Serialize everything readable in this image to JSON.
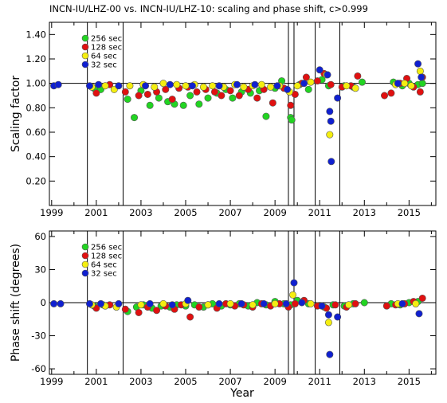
{
  "chart_data": [
    {
      "type": "scatter",
      "title": "INCN-IU/LHZ-00 vs. INCN-IU/LHZ-10: scaling and phase shift, c>0.999",
      "ylabel": "Scaling factor",
      "xlabel": "",
      "xlim": [
        1998.9,
        2016.2
      ],
      "ylim": [
        0.0,
        1.5
      ],
      "xticks": [
        "1999",
        "2001",
        "2003",
        "2005",
        "2007",
        "2009",
        "2011",
        "2013",
        "2015"
      ],
      "yticks": [
        "0.20",
        "0.40",
        "0.60",
        "0.80",
        "1.00",
        "1.20",
        "1.40"
      ],
      "reference_line": 1.0,
      "event_lines": [
        2000.6,
        2002.2,
        2009.6,
        2009.85,
        2010.8,
        2011.9
      ],
      "legend_position": "top-left",
      "series": [
        {
          "name": "256 sec",
          "color": "#22d422",
          "points": [
            [
              2000.9,
              0.96
            ],
            [
              2001.2,
              0.95
            ],
            [
              2002.4,
              0.87
            ],
            [
              2002.7,
              0.72
            ],
            [
              2003.0,
              0.94
            ],
            [
              2003.4,
              0.82
            ],
            [
              2003.8,
              0.88
            ],
            [
              2004.2,
              0.85
            ],
            [
              2004.5,
              0.83
            ],
            [
              2004.9,
              0.82
            ],
            [
              2005.2,
              0.9
            ],
            [
              2005.6,
              0.83
            ],
            [
              2006.0,
              0.88
            ],
            [
              2006.4,
              0.92
            ],
            [
              2006.8,
              0.95
            ],
            [
              2007.1,
              0.88
            ],
            [
              2007.5,
              0.93
            ],
            [
              2007.9,
              0.92
            ],
            [
              2008.3,
              0.94
            ],
            [
              2008.6,
              0.73
            ],
            [
              2009.0,
              0.96
            ],
            [
              2009.3,
              1.02
            ],
            [
              2009.7,
              0.72
            ],
            [
              2009.75,
              0.7
            ],
            [
              2010.1,
              0.99
            ],
            [
              2010.5,
              0.95
            ],
            [
              2011.1,
              1.03
            ],
            [
              2011.4,
              0.98
            ],
            [
              2012.1,
              0.98
            ],
            [
              2012.5,
              0.97
            ],
            [
              2012.9,
              1.01
            ],
            [
              2014.3,
              1.01
            ],
            [
              2014.7,
              0.98
            ],
            [
              2015.0,
              1.0
            ],
            [
              2015.4,
              0.99
            ],
            [
              2015.6,
              1.0
            ]
          ]
        },
        {
          "name": "128 sec",
          "color": "#e01010",
          "points": [
            [
              2001.0,
              0.92
            ],
            [
              2001.6,
              0.99
            ],
            [
              2002.3,
              0.93
            ],
            [
              2002.9,
              0.9
            ],
            [
              2003.3,
              0.91
            ],
            [
              2003.7,
              0.93
            ],
            [
              2004.1,
              0.95
            ],
            [
              2004.4,
              0.87
            ],
            [
              2004.7,
              0.96
            ],
            [
              2005.1,
              0.97
            ],
            [
              2005.5,
              0.93
            ],
            [
              2005.9,
              0.95
            ],
            [
              2006.3,
              0.93
            ],
            [
              2006.6,
              0.9
            ],
            [
              2007.0,
              0.94
            ],
            [
              2007.4,
              0.9
            ],
            [
              2007.8,
              0.95
            ],
            [
              2008.2,
              0.88
            ],
            [
              2008.5,
              0.95
            ],
            [
              2008.9,
              0.84
            ],
            [
              2009.4,
              0.96
            ],
            [
              2009.7,
              0.82
            ],
            [
              2009.9,
              0.91
            ],
            [
              2010.2,
              1.0
            ],
            [
              2010.4,
              1.05
            ],
            [
              2010.9,
              1.02
            ],
            [
              2011.2,
              1.08
            ],
            [
              2011.5,
              0.99
            ],
            [
              2012.0,
              0.97
            ],
            [
              2012.4,
              0.98
            ],
            [
              2012.7,
              1.06
            ],
            [
              2013.9,
              0.9
            ],
            [
              2014.2,
              0.92
            ],
            [
              2014.6,
              1.0
            ],
            [
              2014.9,
              1.04
            ],
            [
              2015.2,
              0.97
            ],
            [
              2015.5,
              0.93
            ],
            [
              2015.6,
              1.05
            ]
          ]
        },
        {
          "name": "64 sec",
          "color": "#f4ee10",
          "points": [
            [
              2000.8,
              0.97
            ],
            [
              2001.4,
              0.98
            ],
            [
              2001.8,
              0.95
            ],
            [
              2002.5,
              0.98
            ],
            [
              2003.1,
              0.99
            ],
            [
              2003.6,
              0.97
            ],
            [
              2004.0,
              1.0
            ],
            [
              2004.6,
              0.99
            ],
            [
              2005.0,
              0.98
            ],
            [
              2005.4,
              0.99
            ],
            [
              2005.8,
              0.97
            ],
            [
              2006.2,
              0.98
            ],
            [
              2006.7,
              0.97
            ],
            [
              2007.2,
              0.99
            ],
            [
              2007.6,
              0.97
            ],
            [
              2008.0,
              0.98
            ],
            [
              2008.4,
              0.99
            ],
            [
              2008.8,
              0.97
            ],
            [
              2009.2,
              0.98
            ],
            [
              2009.65,
              0.93
            ],
            [
              2010.0,
              0.98
            ],
            [
              2010.6,
              1.01
            ],
            [
              2011.3,
              1.07
            ],
            [
              2011.45,
              0.58
            ],
            [
              2012.2,
              0.98
            ],
            [
              2012.6,
              0.96
            ],
            [
              2014.4,
              0.99
            ],
            [
              2014.8,
              1.0
            ],
            [
              2015.1,
              0.98
            ],
            [
              2015.5,
              1.1
            ]
          ]
        },
        {
          "name": "32 sec",
          "color": "#1020d0",
          "points": [
            [
              1999.1,
              0.98
            ],
            [
              1999.3,
              0.99
            ],
            [
              2000.7,
              0.98
            ],
            [
              2001.1,
              0.99
            ],
            [
              2002.0,
              0.98
            ],
            [
              2003.2,
              0.98
            ],
            [
              2004.3,
              0.99
            ],
            [
              2005.3,
              0.98
            ],
            [
              2006.5,
              0.98
            ],
            [
              2007.3,
              0.99
            ],
            [
              2008.1,
              0.99
            ],
            [
              2009.1,
              0.98
            ],
            [
              2009.55,
              0.95
            ],
            [
              2010.3,
              1.0
            ],
            [
              2011.0,
              1.11
            ],
            [
              2011.35,
              1.07
            ],
            [
              2011.45,
              0.77
            ],
            [
              2011.5,
              0.69
            ],
            [
              2011.52,
              0.36
            ],
            [
              2011.8,
              0.88
            ],
            [
              2014.5,
              1.0
            ],
            [
              2015.4,
              1.16
            ],
            [
              2015.55,
              1.05
            ]
          ]
        }
      ]
    },
    {
      "type": "scatter",
      "title": "",
      "ylabel": "Phase shift (degrees)",
      "xlabel": "Year",
      "xlim": [
        1998.9,
        2016.2
      ],
      "ylim": [
        -65,
        65
      ],
      "xticks": [
        "1999",
        "2001",
        "2003",
        "2005",
        "2007",
        "2009",
        "2011",
        "2013",
        "2015"
      ],
      "yticks": [
        "-60",
        "-30",
        "0",
        "30",
        "60"
      ],
      "reference_line": 0,
      "event_lines": [
        2000.6,
        2002.2,
        2009.6,
        2009.85,
        2010.8,
        2011.9
      ],
      "legend_position": "top-left",
      "series": [
        {
          "name": "256 sec",
          "color": "#22d422",
          "points": [
            [
              2000.9,
              -3
            ],
            [
              2001.3,
              -2
            ],
            [
              2002.4,
              -8
            ],
            [
              2002.8,
              -4
            ],
            [
              2003.1,
              -2
            ],
            [
              2003.5,
              -5
            ],
            [
              2003.9,
              -3
            ],
            [
              2004.3,
              -4
            ],
            [
              2004.6,
              -2
            ],
            [
              2005.0,
              -3
            ],
            [
              2005.4,
              -2
            ],
            [
              2005.8,
              -4
            ],
            [
              2006.2,
              -1
            ],
            [
              2006.6,
              -3
            ],
            [
              2007.0,
              -2
            ],
            [
              2007.4,
              -1
            ],
            [
              2007.8,
              -3
            ],
            [
              2008.2,
              0
            ],
            [
              2008.6,
              -2
            ],
            [
              2009.0,
              1
            ],
            [
              2009.4,
              -1
            ],
            [
              2009.7,
              -2
            ],
            [
              2010.0,
              2
            ],
            [
              2010.5,
              -1
            ],
            [
              2011.2,
              -4
            ],
            [
              2011.6,
              -2
            ],
            [
              2012.1,
              -3
            ],
            [
              2012.5,
              -1
            ],
            [
              2013.0,
              0
            ],
            [
              2014.2,
              -1
            ],
            [
              2014.6,
              -2
            ],
            [
              2015.0,
              0
            ],
            [
              2015.4,
              1
            ]
          ]
        },
        {
          "name": "128 sec",
          "color": "#e01010",
          "points": [
            [
              2001.0,
              -5
            ],
            [
              2001.6,
              -2
            ],
            [
              2002.3,
              -6
            ],
            [
              2002.9,
              -9
            ],
            [
              2003.3,
              -4
            ],
            [
              2003.7,
              -7
            ],
            [
              2004.1,
              -3
            ],
            [
              2004.5,
              -6
            ],
            [
              2004.8,
              -2
            ],
            [
              2005.2,
              -13
            ],
            [
              2005.6,
              -4
            ],
            [
              2006.0,
              -2
            ],
            [
              2006.4,
              -5
            ],
            [
              2006.8,
              -1
            ],
            [
              2007.2,
              -3
            ],
            [
              2007.6,
              -2
            ],
            [
              2008.0,
              -4
            ],
            [
              2008.4,
              -1
            ],
            [
              2008.8,
              -3
            ],
            [
              2009.2,
              -1
            ],
            [
              2009.6,
              -4
            ],
            [
              2009.9,
              -1
            ],
            [
              2010.3,
              2
            ],
            [
              2010.9,
              -3
            ],
            [
              2011.3,
              -5
            ],
            [
              2011.7,
              -2
            ],
            [
              2012.2,
              -4
            ],
            [
              2012.6,
              -1
            ],
            [
              2014.0,
              -3
            ],
            [
              2014.4,
              -2
            ],
            [
              2014.8,
              -1
            ],
            [
              2015.2,
              1
            ],
            [
              2015.6,
              4
            ]
          ]
        },
        {
          "name": "64 sec",
          "color": "#f4ee10",
          "points": [
            [
              2000.8,
              -2
            ],
            [
              2001.4,
              -3
            ],
            [
              2001.9,
              -4
            ],
            [
              2003.0,
              -2
            ],
            [
              2004.0,
              -1
            ],
            [
              2005.0,
              -1
            ],
            [
              2006.0,
              -2
            ],
            [
              2007.0,
              -1
            ],
            [
              2008.0,
              -2
            ],
            [
              2009.0,
              -1
            ],
            [
              2009.8,
              7
            ],
            [
              2010.6,
              -1
            ],
            [
              2011.4,
              -18
            ],
            [
              2012.3,
              -2
            ],
            [
              2014.5,
              -1
            ],
            [
              2015.3,
              -1
            ]
          ]
        },
        {
          "name": "32 sec",
          "color": "#1020d0",
          "points": [
            [
              1999.1,
              -1
            ],
            [
              1999.4,
              -1
            ],
            [
              2000.7,
              -1
            ],
            [
              2001.2,
              -1
            ],
            [
              2002.0,
              -1
            ],
            [
              2003.4,
              -1
            ],
            [
              2004.4,
              -2
            ],
            [
              2005.1,
              2
            ],
            [
              2006.5,
              -1
            ],
            [
              2007.5,
              -1
            ],
            [
              2008.5,
              -1
            ],
            [
              2009.5,
              -1
            ],
            [
              2009.85,
              18
            ],
            [
              2010.2,
              0
            ],
            [
              2011.1,
              -3
            ],
            [
              2011.4,
              -11
            ],
            [
              2011.45,
              -47
            ],
            [
              2011.8,
              -13
            ],
            [
              2014.7,
              -1
            ],
            [
              2015.45,
              -10
            ]
          ]
        }
      ]
    }
  ]
}
